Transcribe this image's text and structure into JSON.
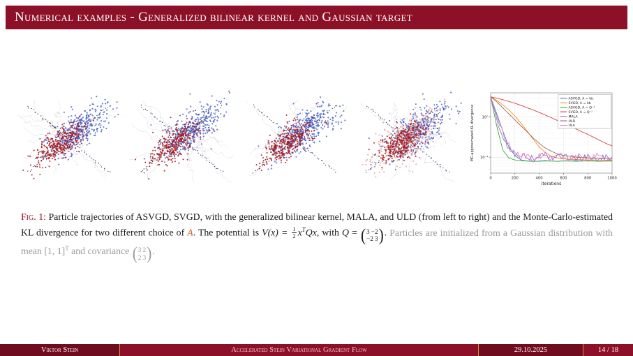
{
  "colors": {
    "bar_red": "#8c1027",
    "bar_red_dark": "#6f0c1e",
    "footer_title_text": "#f2c6ce",
    "separator_gold": "#c89b4a",
    "fig_label_red": "#8c1027",
    "alert_orange": "#d3602f",
    "gray_text": "#9b9b9b",
    "blue_points": "#3c55c2",
    "red_points": "#a5161c",
    "salmon_points": "#e59c8d",
    "x_dots": "#26305a"
  },
  "header": {
    "title": "Numerical examples - Generalized bilinear kernel and Gaussian target"
  },
  "figure": {
    "panels": [
      {
        "name": "ASVGD",
        "has_light_red_points": false
      },
      {
        "name": "SVGD",
        "has_light_red_points": false
      },
      {
        "name": "MALA",
        "has_light_red_points": false
      },
      {
        "name": "ULD",
        "has_light_red_points": true
      }
    ]
  },
  "chart_data": {
    "type": "line",
    "title": "",
    "xlabel": "iterations",
    "ylabel": "MC-approximated KL divergence",
    "xlim": [
      0,
      1000
    ],
    "ylim": [
      0.04,
      4
    ],
    "yscale": "log",
    "grid": true,
    "legend_position": "upper right",
    "x_ticks": [
      0,
      200,
      400,
      600,
      800,
      1000
    ],
    "y_ticks": [
      {
        "v": 1,
        "label": "10⁰"
      },
      {
        "v": 0.1,
        "label": "10⁻¹"
      }
    ],
    "x": [
      0,
      50,
      100,
      150,
      200,
      250,
      300,
      350,
      400,
      450,
      500,
      550,
      600,
      650,
      700,
      750,
      800,
      850,
      900,
      950,
      1000
    ],
    "series": [
      {
        "name": "ASVGD, A = Id₂",
        "color": "#1f77b4",
        "noisy": false,
        "values": [
          3.2,
          1.2,
          0.45,
          0.18,
          0.11,
          0.085,
          0.08,
          0.078,
          0.08,
          0.082,
          0.08,
          0.079,
          0.081,
          0.08,
          0.082,
          0.08,
          0.081,
          0.08,
          0.079,
          0.08,
          0.08
        ]
      },
      {
        "name": "SVGD, A = Id₂",
        "color": "#ff7f0e",
        "noisy": false,
        "values": [
          3.2,
          2.6,
          2.0,
          1.5,
          1.05,
          0.7,
          0.45,
          0.28,
          0.18,
          0.13,
          0.105,
          0.095,
          0.09,
          0.088,
          0.087,
          0.086,
          0.085,
          0.085,
          0.084,
          0.084,
          0.084
        ]
      },
      {
        "name": "ASVGD, A = Q⁻¹",
        "color": "#2ca02c",
        "noisy": false,
        "values": [
          3.2,
          0.6,
          0.15,
          0.095,
          0.085,
          0.082,
          0.08,
          0.08,
          0.079,
          0.08,
          0.08,
          0.079,
          0.08,
          0.08,
          0.079,
          0.08,
          0.08,
          0.08,
          0.079,
          0.08,
          0.08
        ]
      },
      {
        "name": "SVGD, A = Q⁻¹",
        "color": "#d62728",
        "noisy": false,
        "values": [
          3.2,
          2.95,
          2.7,
          2.45,
          2.2,
          1.95,
          1.7,
          1.5,
          1.3,
          1.12,
          0.96,
          0.82,
          0.7,
          0.6,
          0.51,
          0.43,
          0.37,
          0.31,
          0.26,
          0.22,
          0.19
        ]
      },
      {
        "name": "MALA",
        "color": "#9467bd",
        "noisy": true,
        "values": [
          3.2,
          0.9,
          0.3,
          0.16,
          0.12,
          0.1,
          0.11,
          0.09,
          0.1,
          0.12,
          0.09,
          0.1,
          0.11,
          0.09,
          0.1,
          0.09,
          0.11,
          0.1,
          0.09,
          0.1,
          0.1
        ]
      },
      {
        "name": "ULD",
        "color": "#8c564b",
        "noisy": false,
        "values": [
          3.2,
          2.4,
          1.7,
          1.2,
          0.85,
          0.6,
          0.43,
          0.3,
          0.22,
          0.17,
          0.14,
          0.12,
          0.11,
          0.105,
          0.1,
          0.098,
          0.096,
          0.094,
          0.093,
          0.092,
          0.09
        ]
      },
      {
        "name": "ULA",
        "color": "#e377c2",
        "noisy": true,
        "values": [
          3.2,
          1.1,
          0.4,
          0.2,
          0.13,
          0.1,
          0.12,
          0.09,
          0.11,
          0.1,
          0.08,
          0.12,
          0.1,
          0.09,
          0.11,
          0.1,
          0.09,
          0.1,
          0.11,
          0.09,
          0.1
        ]
      }
    ]
  },
  "caption": {
    "label": "Fig. 1:",
    "part1": " Particle trajectories of ASVGD, SVGD, with the generalized bilinear kernel, MALA, and ULD (from left to right) and the Monte-Carlo-estimated KL divergence for two different choice of ",
    "alert_A": "A",
    "part2": ". The potential is ",
    "v_of_x": "V(x) = ",
    "frac_num": "1",
    "frac_den": "2",
    "mid_a": "x",
    "sup_T": "T",
    "mid_b": "Qx",
    "mid_c": ", with ",
    "mid_d": "Q",
    "mid_e": " = ",
    "lparen": "(",
    "rparen": ")",
    "q_r1": "3 −2",
    "q_r2": "−2 3",
    "period1": ". ",
    "gray_a": "Particles are initialized from a Gaussian distribution with mean [1, 1]",
    "gray_b": " and covariance ",
    "cov_r1": "3 2",
    "cov_r2": "2 3",
    "period2": "."
  },
  "footer": {
    "author": "Viktor Stein",
    "talk_title": "Accelerated Stein Variational Gradient Flow",
    "date": "29.10.2025",
    "page": "14 / 18"
  }
}
